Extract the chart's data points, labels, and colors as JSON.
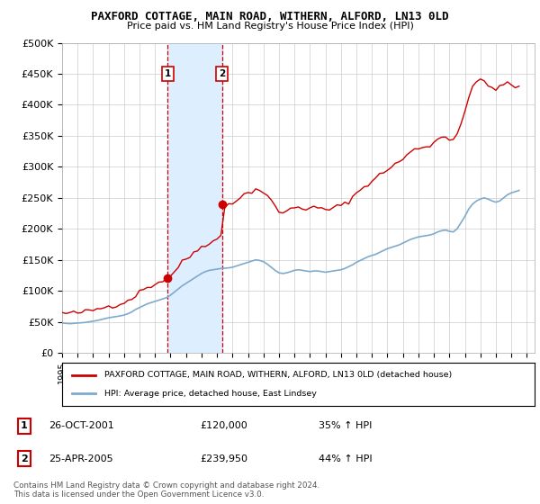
{
  "title": "PAXFORD COTTAGE, MAIN ROAD, WITHERN, ALFORD, LN13 0LD",
  "subtitle": "Price paid vs. HM Land Registry's House Price Index (HPI)",
  "ylim": [
    0,
    500000
  ],
  "yticks": [
    0,
    50000,
    100000,
    150000,
    200000,
    250000,
    300000,
    350000,
    400000,
    450000,
    500000
  ],
  "ytick_labels": [
    "£0",
    "£50K",
    "£100K",
    "£150K",
    "£200K",
    "£250K",
    "£300K",
    "£350K",
    "£400K",
    "£450K",
    "£500K"
  ],
  "xlim_start": 1995.0,
  "xlim_end": 2025.5,
  "sale1_x": 2001.82,
  "sale1_y": 120000,
  "sale2_x": 2005.32,
  "sale2_y": 239950,
  "sale1_label": "26-OCT-2001",
  "sale1_price": "£120,000",
  "sale1_hpi": "35% ↑ HPI",
  "sale2_label": "25-APR-2005",
  "sale2_price": "£239,950",
  "sale2_hpi": "44% ↑ HPI",
  "legend_line1": "PAXFORD COTTAGE, MAIN ROAD, WITHERN, ALFORD, LN13 0LD (detached house)",
  "legend_line2": "HPI: Average price, detached house, East Lindsey",
  "footer1": "Contains HM Land Registry data © Crown copyright and database right 2024.",
  "footer2": "This data is licensed under the Open Government Licence v3.0.",
  "red_color": "#cc0000",
  "blue_color": "#7eaacc",
  "shade_color": "#ddeeff",
  "background_color": "#ffffff",
  "grid_color": "#cccccc",
  "hpi_index": [
    100.0,
    99.2,
    98.5,
    99.5,
    100.5,
    101.5,
    102.8,
    105.0,
    107.5,
    110.0,
    113.0,
    116.0,
    119.0,
    121.0,
    123.5,
    125.5,
    128.5,
    132.5,
    138.5,
    147.0,
    153.5,
    160.0,
    166.0,
    170.5,
    175.0,
    179.0,
    183.5,
    188.0,
    196.0,
    206.5,
    217.0,
    228.0,
    236.5,
    244.5,
    253.0,
    261.5,
    270.0,
    276.5,
    280.5,
    282.5,
    284.5,
    286.5,
    287.5,
    288.5,
    291.0,
    295.0,
    299.5,
    303.5,
    308.0,
    312.0,
    316.5,
    314.0,
    310.0,
    301.5,
    291.0,
    280.5,
    272.0,
    270.0,
    272.0,
    276.0,
    280.5,
    282.5,
    280.5,
    278.5,
    276.5,
    278.5,
    278.5,
    276.5,
    274.5,
    276.5,
    278.5,
    280.5,
    282.5,
    286.5,
    293.0,
    299.5,
    308.0,
    314.0,
    320.5,
    327.0,
    331.5,
    335.5,
    341.5,
    347.5,
    354.5,
    358.5,
    362.5,
    366.5,
    373.5,
    380.0,
    386.5,
    390.5,
    394.5,
    396.5,
    398.5,
    400.5,
    405.0,
    411.0,
    415.5,
    417.5,
    413.5,
    411.5,
    422.0,
    443.5,
    465.0,
    490.5,
    508.5,
    521.5,
    527.5,
    525.0,
    519.5,
    512.0,
    503.0,
    507.5,
    516.0,
    522.5,
    516.0,
    513.5,
    510.0
  ],
  "hpi_abs": [
    48000,
    47500,
    47000,
    47500,
    48000,
    48500,
    49000,
    50000,
    51000,
    52000,
    53500,
    55000,
    56500,
    57500,
    58500,
    59500,
    61000,
    63000,
    66000,
    70000,
    73000,
    76000,
    79000,
    81000,
    83000,
    85000,
    87000,
    89000,
    93000,
    98000,
    103000,
    108000,
    112000,
    116000,
    120000,
    124000,
    128000,
    131000,
    133000,
    134000,
    135000,
    136000,
    136500,
    137000,
    138000,
    140000,
    142000,
    144000,
    146000,
    148000,
    150000,
    149000,
    147000,
    143000,
    138000,
    133000,
    129000,
    128000,
    129000,
    131000,
    133000,
    134000,
    133000,
    132000,
    131000,
    132000,
    132000,
    131000,
    130000,
    131000,
    132000,
    133000,
    134000,
    136000,
    139000,
    142000,
    146000,
    149000,
    152000,
    155000,
    157000,
    159000,
    162000,
    165000,
    168000,
    170000,
    172000,
    174000,
    177000,
    180000,
    183000,
    185000,
    187000,
    188000,
    189000,
    190000,
    192000,
    195000,
    197000,
    198000,
    196000,
    195000,
    200000,
    210000,
    220000,
    232000,
    240000,
    245000,
    248000,
    250000,
    248000,
    245000,
    243000,
    245000,
    250000,
    255000,
    258000,
    260000,
    262000
  ]
}
